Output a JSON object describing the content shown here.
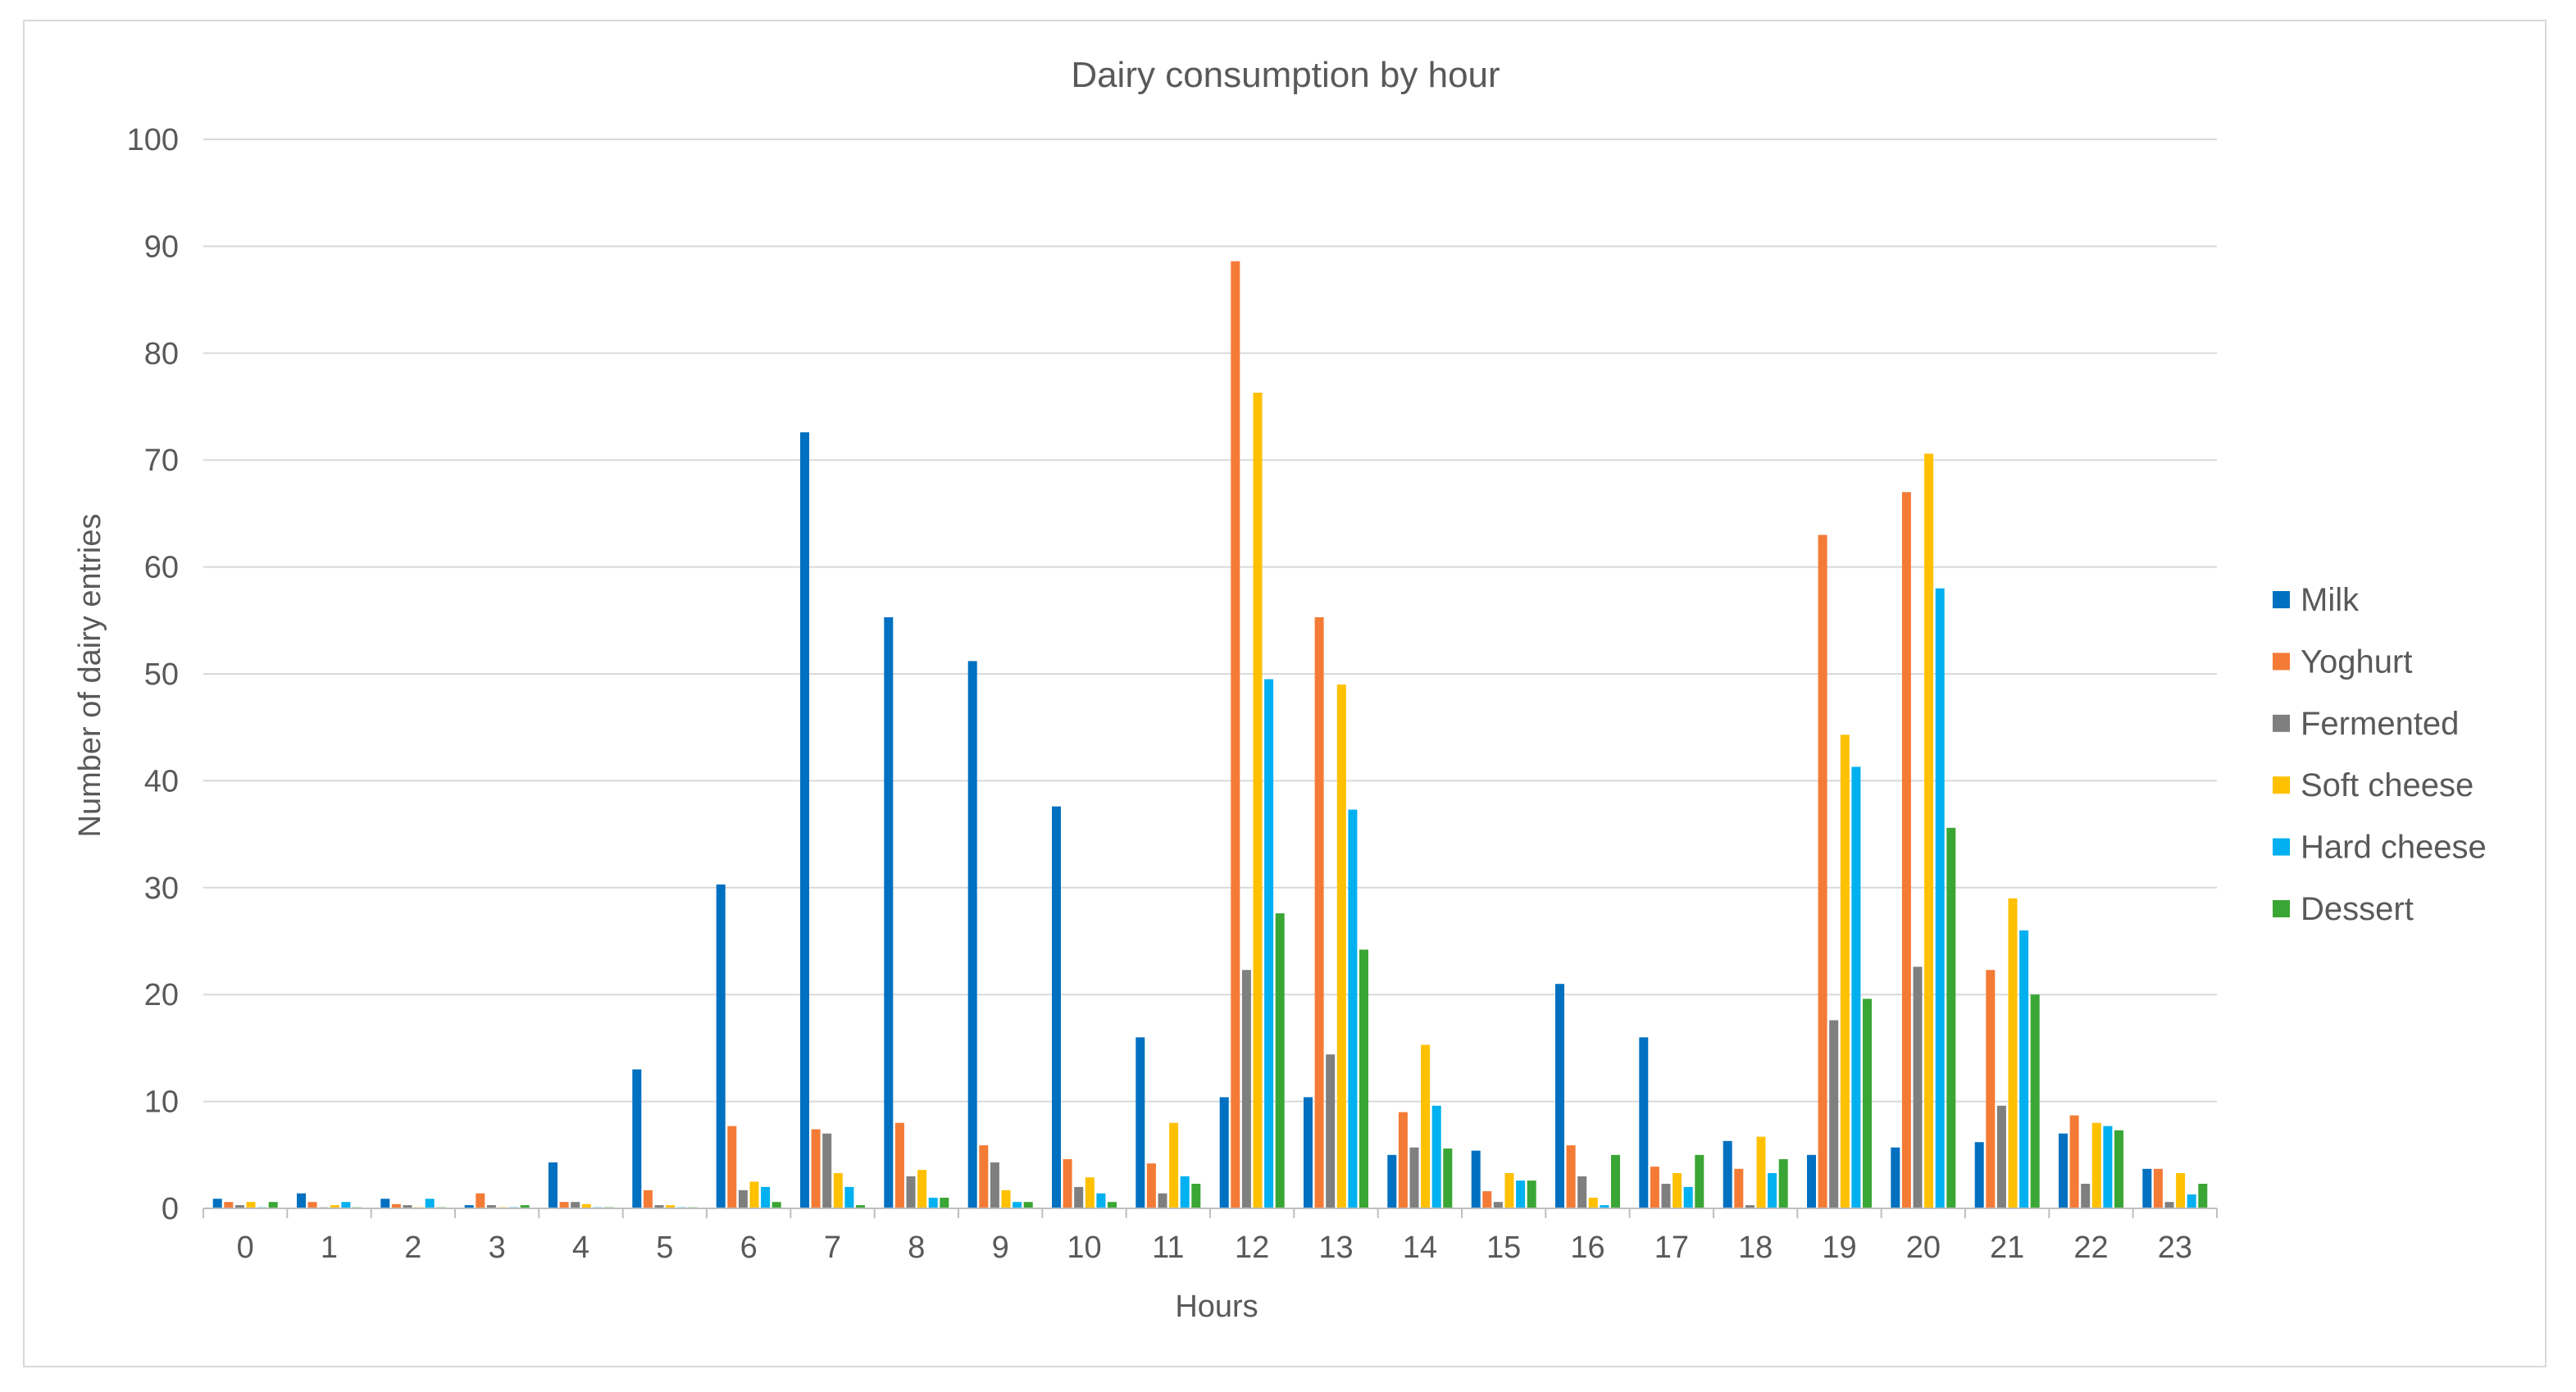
{
  "chart_data": {
    "type": "bar",
    "title": "Dairy consumption by hour",
    "xlabel": "Hours",
    "ylabel": "Number of dairy entries",
    "ylim": [
      0,
      100
    ],
    "yticks": [
      "0",
      "10",
      "20",
      "30",
      "40",
      "50",
      "60",
      "70",
      "80",
      "90",
      "100"
    ],
    "grid": true,
    "legend_position": "right",
    "categories": [
      "0",
      "1",
      "2",
      "3",
      "4",
      "5",
      "6",
      "7",
      "8",
      "9",
      "10",
      "11",
      "12",
      "13",
      "14",
      "15",
      "16",
      "17",
      "18",
      "19",
      "20",
      "21",
      "22",
      "23"
    ],
    "series": [
      {
        "name": "Milk",
        "color": "#0070c0",
        "values": [
          0.9,
          1.4,
          0.9,
          0.3,
          4.3,
          13.0,
          30.3,
          72.6,
          55.3,
          51.2,
          37.6,
          16.0,
          10.4,
          10.4,
          5.0,
          5.4,
          21.0,
          16.0,
          6.3,
          5.0,
          5.7,
          6.2,
          7.0,
          3.7
        ]
      },
      {
        "name": "Yoghurt",
        "color": "#f47b36",
        "values": [
          0.6,
          0.6,
          0.4,
          1.4,
          0.6,
          1.7,
          7.7,
          7.4,
          8.0,
          5.9,
          4.6,
          4.2,
          88.6,
          55.3,
          9.0,
          1.6,
          5.9,
          3.9,
          3.7,
          63.0,
          67.0,
          22.3,
          8.7,
          3.7
        ]
      },
      {
        "name": "Fermented",
        "color": "#7f7f7f",
        "values": [
          0.3,
          0.1,
          0.3,
          0.3,
          0.6,
          0.3,
          1.7,
          7.0,
          3.0,
          4.3,
          2.0,
          1.4,
          22.3,
          14.4,
          5.7,
          0.6,
          3.0,
          2.3,
          0.3,
          17.6,
          22.6,
          9.6,
          2.3,
          0.6
        ]
      },
      {
        "name": "Soft cheese",
        "color": "#ffc000",
        "values": [
          0.6,
          0.3,
          0.1,
          0.1,
          0.4,
          0.3,
          2.5,
          3.3,
          3.6,
          1.7,
          2.9,
          8.0,
          76.3,
          49.0,
          15.3,
          3.3,
          1.0,
          3.3,
          6.7,
          44.3,
          70.6,
          29.0,
          8.0,
          3.3
        ]
      },
      {
        "name": "Hard cheese",
        "color": "#00b0f0",
        "values": [
          0.1,
          0.6,
          0.9,
          0.1,
          0.1,
          0.1,
          2.0,
          2.0,
          1.0,
          0.6,
          1.4,
          3.0,
          49.5,
          37.3,
          9.6,
          2.6,
          0.3,
          2.0,
          3.3,
          41.3,
          58.0,
          26.0,
          7.7,
          1.3
        ]
      },
      {
        "name": "Dessert",
        "color": "#3aa635",
        "values": [
          0.6,
          0.1,
          0.1,
          0.3,
          0.1,
          0.1,
          0.6,
          0.3,
          1.0,
          0.6,
          0.6,
          2.3,
          27.6,
          24.2,
          5.6,
          2.6,
          5.0,
          5.0,
          4.6,
          19.6,
          35.6,
          20.0,
          7.3,
          2.3
        ]
      }
    ]
  }
}
